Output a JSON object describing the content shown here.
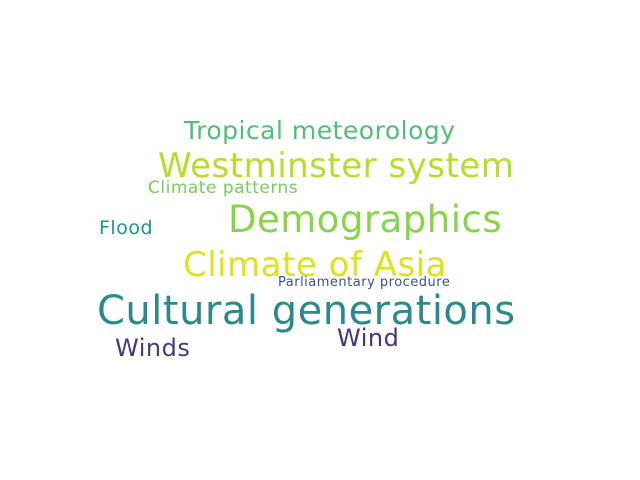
{
  "words": [
    {
      "text": "Tropical meteorology",
      "color": "#4fbf73"
    },
    {
      "text": "Westminster system",
      "color": "#b8dc2a"
    },
    {
      "text": "Climate patterns",
      "color": "#74cd5b"
    },
    {
      "text": "Demographics",
      "color": "#86d549"
    },
    {
      "text": "Flood",
      "color": "#21918c"
    },
    {
      "text": "Climate of Asia",
      "color": "#dde318"
    },
    {
      "text": "Parliamentary procedure",
      "color": "#3b528b"
    },
    {
      "text": "Cultural generations",
      "color": "#2a8a8b"
    },
    {
      "text": "Wind",
      "color": "#46337e"
    },
    {
      "text": "Winds",
      "color": "#443983"
    }
  ]
}
